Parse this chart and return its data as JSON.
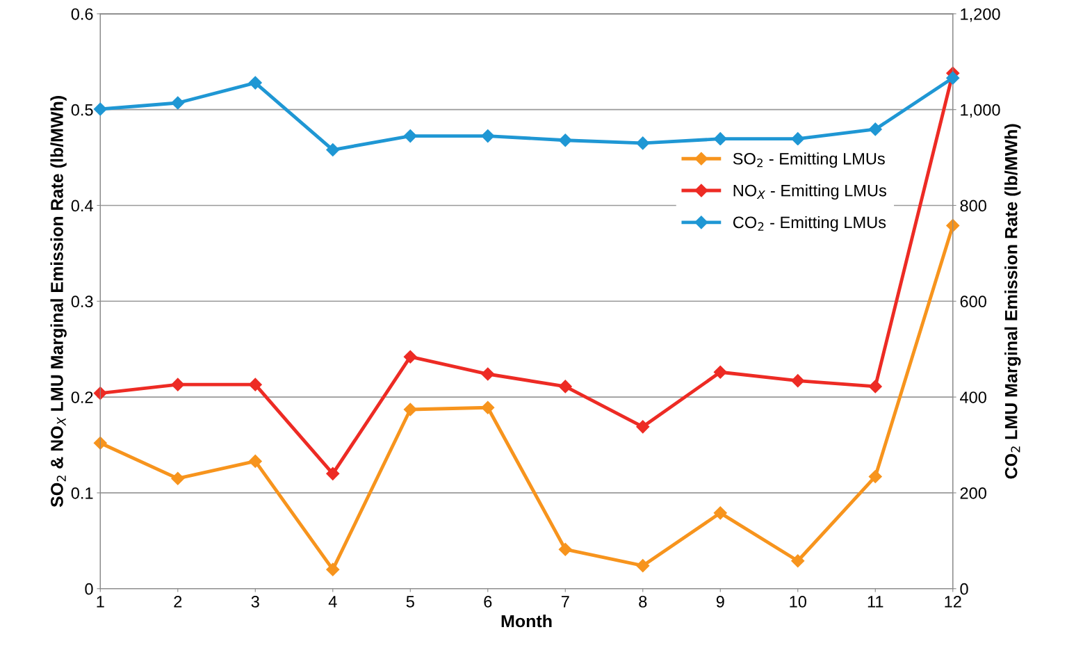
{
  "chart_data": {
    "type": "line",
    "xlabel": "Month",
    "ylabel": "SO$_{2}$ & NO$_{X}$ LMU Marginal Emission Rate (lb/MWh)",
    "y2label": "CO$_{2}$ LMU Marginal Emission Rate (lb/MWh)",
    "x": [
      1,
      2,
      3,
      4,
      5,
      6,
      7,
      8,
      9,
      10,
      11,
      12
    ],
    "xlim": [
      1,
      12
    ],
    "xticks": [
      1,
      2,
      3,
      4,
      5,
      6,
      7,
      8,
      9,
      10,
      11,
      12
    ],
    "ylim": [
      0,
      0.6
    ],
    "yticks": [
      0,
      0.1,
      0.2,
      0.3,
      0.4,
      0.5,
      0.6
    ],
    "y2lim": [
      0,
      1200
    ],
    "y2ticks": [
      0,
      200,
      400,
      600,
      800,
      {
        "value": 1000,
        "label": "1,000"
      },
      {
        "value": 1200,
        "label": "1,200"
      }
    ],
    "grid": "y",
    "legend": "right",
    "marker": "diamond",
    "line_style": "solid",
    "series": [
      {
        "name": "SO$_{2}$ - Emitting LMUs",
        "color": "#f7941d",
        "values": [
          0.152,
          0.115,
          0.133,
          0.02,
          0.187,
          0.189,
          0.041,
          0.024,
          0.079,
          0.029,
          0.117,
          0.379
        ]
      },
      {
        "name": "NO$_{X}$ - Emitting LMUs",
        "color": "#ed2b24",
        "values": [
          0.204,
          0.213,
          0.213,
          0.12,
          0.242,
          0.224,
          0.211,
          0.169,
          0.226,
          0.217,
          0.211,
          0.538
        ]
      },
      {
        "name": "CO$_{2}$ - Emitting LMUs",
        "color": "#1f97d4",
        "axis": "y2",
        "values": [
          1001,
          1014,
          1056,
          916,
          945,
          945,
          936,
          930,
          939,
          939,
          959,
          1066
        ]
      }
    ]
  }
}
